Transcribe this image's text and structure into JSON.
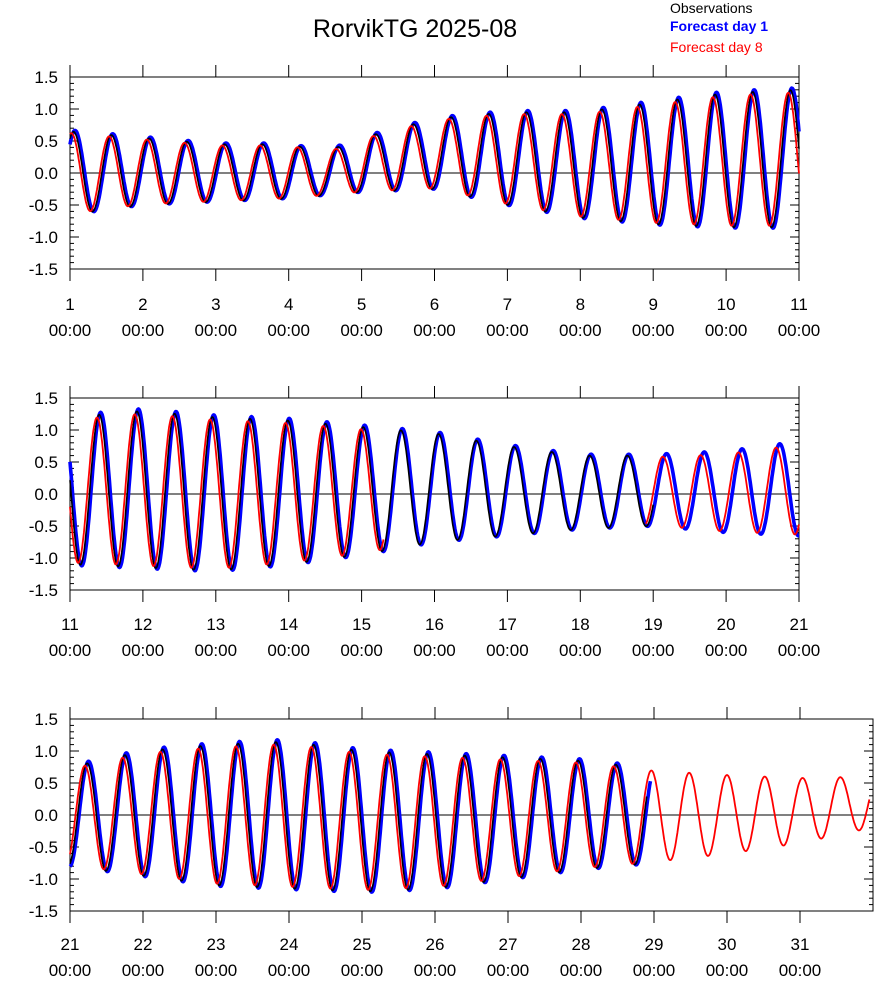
{
  "chart_data": [
    {
      "type": "line",
      "title": "RorvikTG 2025-08",
      "legend": {
        "placement": "top-right",
        "entries": [
          {
            "name": "Observations",
            "color": "#000000"
          },
          {
            "name": "Forecast day 1",
            "color": "#0000ff"
          },
          {
            "name": "Forecast day 8",
            "color": "#ff0000"
          }
        ]
      },
      "panels": [
        {
          "xlim": [
            1,
            11
          ],
          "ylim": [
            -1.5,
            1.5
          ],
          "x_ticks": [
            {
              "day": "1",
              "time": "00:00"
            },
            {
              "day": "2",
              "time": "00:00"
            },
            {
              "day": "3",
              "time": "00:00"
            },
            {
              "day": "4",
              "time": "00:00"
            },
            {
              "day": "5",
              "time": "00:00"
            },
            {
              "day": "6",
              "time": "00:00"
            },
            {
              "day": "7",
              "time": "00:00"
            },
            {
              "day": "8",
              "time": "00:00"
            },
            {
              "day": "9",
              "time": "00:00"
            },
            {
              "day": "10",
              "time": "00:00"
            },
            {
              "day": "11",
              "time": "00:00"
            }
          ],
          "y_ticks": [
            "1.5",
            "1.0",
            "0.5",
            "0.0",
            "-0.5",
            "-1.0",
            "-1.5"
          ],
          "amplitude_envelope": {
            "x": [
              1,
              2,
              3,
              4,
              4.5,
              5,
              6,
              7,
              8,
              9,
              10,
              11
            ],
            "high": [
              0.65,
              0.55,
              0.45,
              0.45,
              0.33,
              0.55,
              0.85,
              0.95,
              0.95,
              1.1,
              1.25,
              1.3
            ],
            "low": [
              -0.65,
              -0.5,
              -0.45,
              -0.4,
              -0.35,
              -0.3,
              -0.25,
              -0.5,
              -0.7,
              -0.8,
              -0.85,
              -0.85
            ]
          },
          "series": [
            {
              "name": "Observations",
              "visible_from": 1,
              "visible_to": 11
            },
            {
              "name": "Forecast day 1",
              "visible_from": 1,
              "visible_to": 11
            },
            {
              "name": "Forecast day 8",
              "visible_from": 1,
              "visible_to": 11
            }
          ]
        },
        {
          "xlim": [
            11,
            21
          ],
          "ylim": [
            -1.5,
            1.5
          ],
          "x_ticks": [
            {
              "day": "11",
              "time": "00:00"
            },
            {
              "day": "12",
              "time": "00:00"
            },
            {
              "day": "13",
              "time": "00:00"
            },
            {
              "day": "14",
              "time": "00:00"
            },
            {
              "day": "15",
              "time": "00:00"
            },
            {
              "day": "16",
              "time": "00:00"
            },
            {
              "day": "17",
              "time": "00:00"
            },
            {
              "day": "18",
              "time": "00:00"
            },
            {
              "day": "19",
              "time": "00:00"
            },
            {
              "day": "20",
              "time": "00:00"
            },
            {
              "day": "21",
              "time": "00:00"
            }
          ],
          "y_ticks": [
            "1.5",
            "1.0",
            "0.5",
            "0.0",
            "-0.5",
            "-1.0",
            "-1.5"
          ],
          "amplitude_envelope": {
            "x": [
              11,
              12,
              13,
              14,
              15,
              16,
              17,
              18,
              19,
              20,
              21
            ],
            "high": [
              1.2,
              1.3,
              1.2,
              1.15,
              1.05,
              0.95,
              0.75,
              0.6,
              0.6,
              0.65,
              0.8
            ],
            "low": [
              -1.1,
              -1.15,
              -1.2,
              -1.1,
              -0.95,
              -0.75,
              -0.65,
              -0.55,
              -0.5,
              -0.6,
              -0.65
            ]
          },
          "series": [
            {
              "name": "Observations",
              "visible_from": 11,
              "visible_to": 19
            },
            {
              "name": "Forecast day 1",
              "visible_from": 11,
              "visible_to": 21
            },
            {
              "name": "Forecast day 8",
              "visible_from": 11,
              "visible_to": 21,
              "gaps": [
                [
                  15.3,
                  18.9
                ]
              ]
            }
          ]
        },
        {
          "xlim": [
            21,
            32
          ],
          "ylim": [
            -1.5,
            1.5
          ],
          "x_ticks": [
            {
              "day": "21",
              "time": "00:00"
            },
            {
              "day": "22",
              "time": "00:00"
            },
            {
              "day": "23",
              "time": "00:00"
            },
            {
              "day": "24",
              "time": "00:00"
            },
            {
              "day": "25",
              "time": "00:00"
            },
            {
              "day": "26",
              "time": "00:00"
            },
            {
              "day": "27",
              "time": "00:00"
            },
            {
              "day": "28",
              "time": "00:00"
            },
            {
              "day": "29",
              "time": "00:00"
            },
            {
              "day": "30",
              "time": "00:00"
            },
            {
              "day": "31",
              "time": "00:00"
            }
          ],
          "y_ticks": [
            "1.5",
            "1.0",
            "0.5",
            "0.0",
            "-0.5",
            "-1.0",
            "-1.5"
          ],
          "amplitude_envelope": {
            "x": [
              21,
              22,
              23,
              24,
              25,
              26,
              27,
              28,
              29,
              30,
              31,
              32
            ],
            "high": [
              0.75,
              1.0,
              1.1,
              1.15,
              1.0,
              0.95,
              0.9,
              0.85,
              0.72,
              0.65,
              0.6,
              0.62
            ],
            "low": [
              -0.8,
              -0.95,
              -1.1,
              -1.15,
              -1.2,
              -1.15,
              -1.0,
              -0.85,
              -0.75,
              -0.62,
              -0.45,
              -0.2
            ]
          },
          "series": [
            {
              "name": "Observations",
              "visible_from": 21,
              "visible_to": 28.9
            },
            {
              "name": "Forecast day 1",
              "visible_from": 21,
              "visible_to": 28.95
            },
            {
              "name": "Forecast day 8",
              "visible_from": 21,
              "visible_to": 31.95
            }
          ]
        }
      ]
    }
  ]
}
